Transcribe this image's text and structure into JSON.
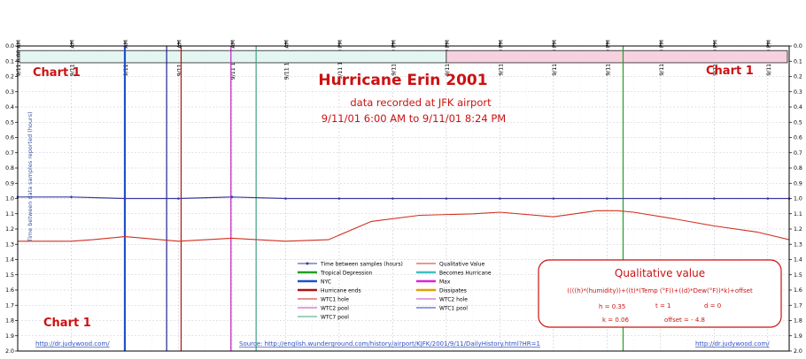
{
  "chart_data": {
    "type": "line",
    "title": "Hurricane Erin 2001",
    "subtitle_1": "data recorded at JFK airport",
    "subtitle_2": "9/11/01 6:00 AM to 9/11/01 8:24 PM",
    "corner_labels": [
      "Chart 1",
      "Chart 1",
      "Chart 1"
    ],
    "ylabel": "Time between data samples reported (hours)",
    "ylim": [
      0.0,
      2.0
    ],
    "yticks": [
      "0.0",
      "0.1",
      "0.2",
      "0.3",
      "0.4",
      "0.5",
      "0.6",
      "0.7",
      "0.8",
      "0.9",
      "1.0",
      "1.1",
      "1.2",
      "1.3",
      "1.4",
      "1.5",
      "1.6",
      "1.7",
      "1.8",
      "1.9",
      "2.0"
    ],
    "right_yticks": [
      "0.0",
      "0.1",
      "0.2",
      "0.3",
      "0.4",
      "0.5",
      "0.6",
      "0.7",
      "0.8",
      "0.9",
      "1.0",
      "1.1",
      "1.2",
      "1.3",
      "1.4",
      "1.5",
      "1.6",
      "1.7",
      "1.8",
      "1.9",
      "2.0"
    ],
    "x_range_hours": [
      6.0,
      20.4
    ],
    "xticks": [
      {
        "t": 6,
        "label": "9/11 6:00 AM"
      },
      {
        "t": 7,
        "label": "9/11 7:00 AM"
      },
      {
        "t": 8,
        "label": "9/11 8:00 AM"
      },
      {
        "t": 9,
        "label": "9/11 9:00 AM"
      },
      {
        "t": 10,
        "label": "9/11 10:00 AM"
      },
      {
        "t": 11,
        "label": "9/11 11:00 AM"
      },
      {
        "t": 12,
        "label": "9/11 12:00 PM"
      },
      {
        "t": 13,
        "label": "9/11 1:00 PM"
      },
      {
        "t": 14,
        "label": "9/11 2:00 PM"
      },
      {
        "t": 15,
        "label": "9/11 3:00 PM"
      },
      {
        "t": 16,
        "label": "9/11 4:00 PM"
      },
      {
        "t": 17,
        "label": "9/11 5:00 PM"
      },
      {
        "t": 18,
        "label": "9/11 6:00 PM"
      },
      {
        "t": 19,
        "label": "9/11 7:00 PM"
      },
      {
        "t": 20,
        "label": "9/11 8:00 PM"
      }
    ],
    "series": [
      {
        "name": "Time between samples (hours)",
        "color": "#3a3aa0",
        "x": [
          6.0,
          7.0,
          8.0,
          9.0,
          10.0,
          11.0,
          12.0,
          13.0,
          14.0,
          15.0,
          16.0,
          17.0,
          18.0,
          19.0,
          20.0,
          20.4
        ],
        "values": [
          0.99,
          0.99,
          1.0,
          1.0,
          0.99,
          1.0,
          1.0,
          1.0,
          1.0,
          1.0,
          1.0,
          1.0,
          1.0,
          1.0,
          1.0,
          1.0
        ]
      },
      {
        "name": "Qualitative Value",
        "color": "#d03020",
        "x": [
          6.0,
          7.0,
          7.4,
          8.0,
          9.0,
          10.0,
          11.0,
          11.8,
          12.6,
          13.5,
          14.5,
          15.0,
          16.0,
          16.8,
          17.2,
          17.5,
          18.2,
          19.0,
          19.8,
          20.4
        ],
        "values": [
          1.28,
          1.28,
          1.27,
          1.25,
          1.28,
          1.26,
          1.28,
          1.27,
          1.15,
          1.11,
          1.1,
          1.09,
          1.12,
          1.08,
          1.08,
          1.09,
          1.13,
          1.18,
          1.22,
          1.27
        ]
      }
    ],
    "markers": [
      {
        "name": "NYC",
        "t": 8.0,
        "color": "#2050d0"
      },
      {
        "name": "WTC1 hole",
        "t": 8.78,
        "color": "#202090"
      },
      {
        "name": "WTC2 hole",
        "t": 9.05,
        "color": "#b01010"
      },
      {
        "name": "Max",
        "t": 9.98,
        "color": "#c020c0"
      },
      {
        "name": "WTC7 pool",
        "t": 10.45,
        "color": "#40a080"
      },
      {
        "name": "Becomes Hurricane",
        "t": 17.3,
        "color": "#20a020"
      }
    ],
    "legend": [
      {
        "label": "Time between samples (hours)",
        "color": "#3a3aa0",
        "style": "marker"
      },
      {
        "label": "Qualitative Value",
        "color": "#d03020",
        "style": "thin"
      },
      {
        "label": "Tropical Depression",
        "color": "#20a020",
        "style": "thick"
      },
      {
        "label": "Becomes Hurricane",
        "color": "#40c0c0",
        "style": "thick"
      },
      {
        "label": "NYC",
        "color": "#2050d0",
        "style": "thick"
      },
      {
        "label": "Max",
        "color": "#e020e0",
        "style": "thick"
      },
      {
        "label": "Hurricane ends",
        "color": "#b01010",
        "style": "thick"
      },
      {
        "label": "Dissipates",
        "color": "#e0a000",
        "style": "thick"
      },
      {
        "label": "WTC1 hole",
        "color": "#d02020",
        "style": "thin"
      },
      {
        "label": "WTC2 hole",
        "color": "#c040c0",
        "style": "thin"
      },
      {
        "label": "WTC2 pool",
        "color": "#c040c0",
        "style": "thin"
      },
      {
        "label": "WTC1 pool",
        "color": "#2040c0",
        "style": "thin"
      },
      {
        "label": "WTC7 pool",
        "color": "#40a080",
        "style": "thin"
      }
    ],
    "timeline_bar": {
      "split_t": 14.0,
      "left_color": "#e4f6f2",
      "right_color": "#f6d2e0"
    },
    "qualitative_box": {
      "title": "Qualitative value",
      "formula": "((((h)*(humidity))+((t)*(Temp (°F))+((d)*Dew(°F))*k)+offset",
      "params_row1": [
        "h = 0.35",
        "t = 1",
        "d = 0"
      ],
      "params_row2": [
        "k = 0.06",
        "offset = - 4.8"
      ]
    },
    "footer": {
      "left_url": "http://dr.judywood.com/",
      "source": "Source:  http://english.wunderground.com/history/airport/KJFK/2001/9/11/DailyHistory.html?HR=1",
      "right_url": "http://dr.judywood.com/"
    },
    "colors": {
      "grid": "#c8c8d8",
      "axis": "#000000",
      "accent_red": "#cc1111"
    }
  }
}
